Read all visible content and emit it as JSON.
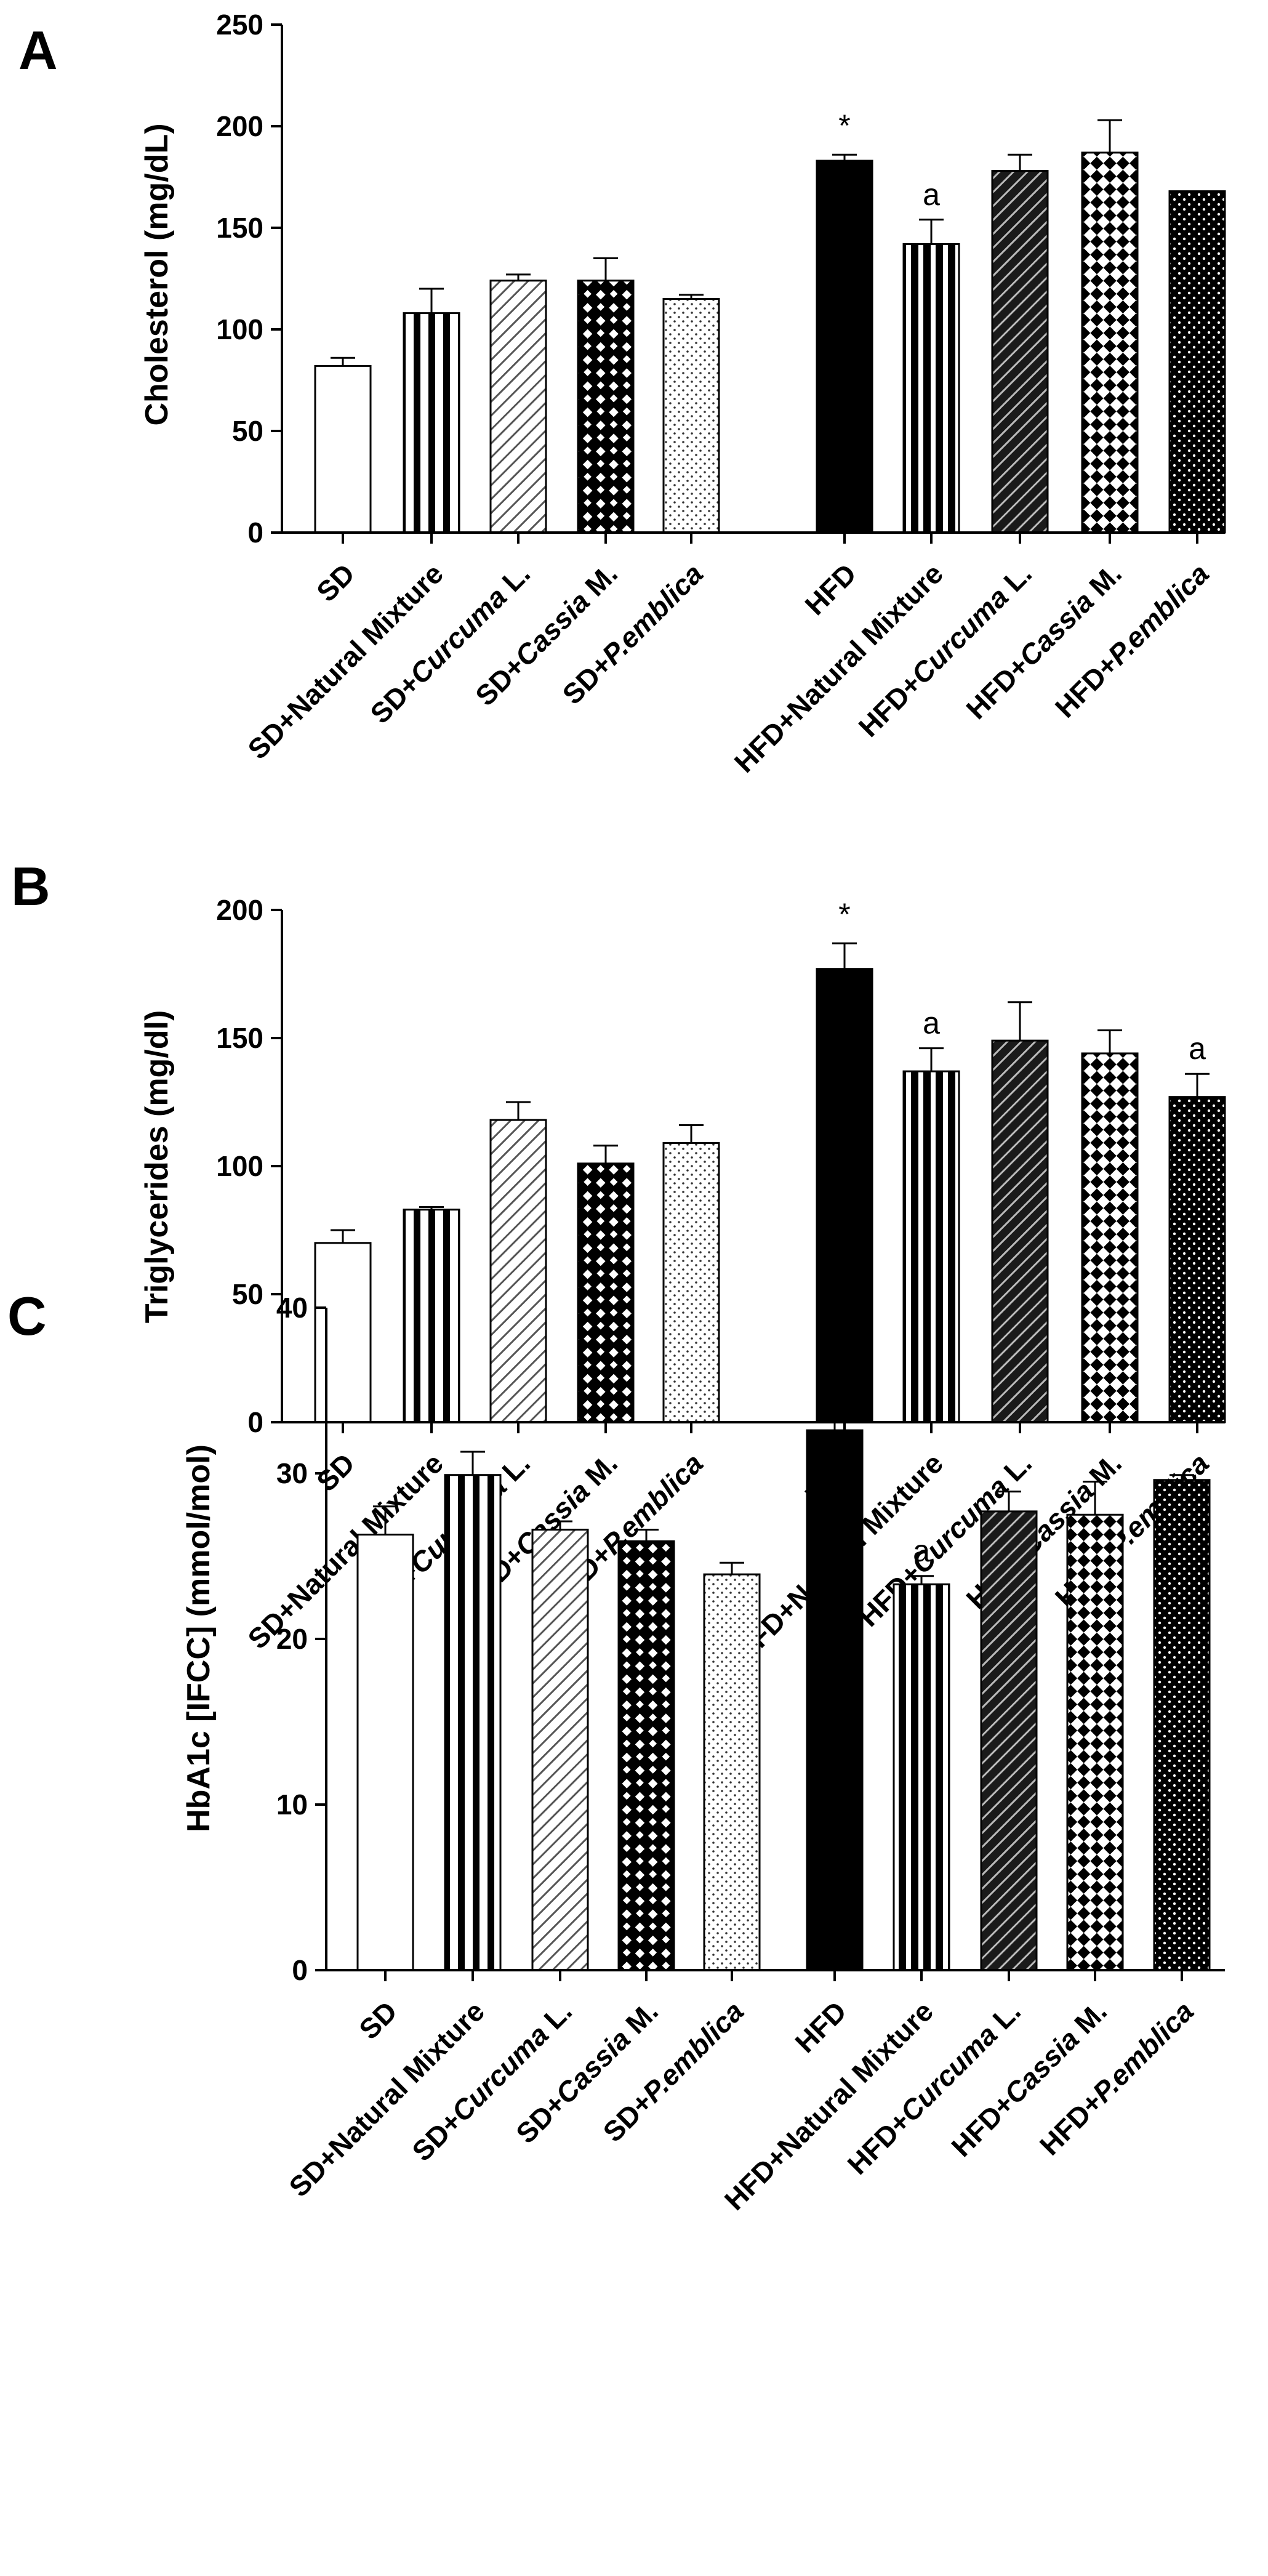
{
  "figure": {
    "colors": {
      "axis": "#000000",
      "background": "#ffffff"
    }
  },
  "chart_data": [
    {
      "type": "bar",
      "panel_label": "A",
      "ylabel": "Cholesterol (mg/dL)",
      "ylim": [
        0,
        250
      ],
      "yticks": [
        0,
        50,
        100,
        150,
        200,
        250
      ],
      "categories": [
        {
          "prefix": "SD",
          "italic": "",
          "suffix": ""
        },
        {
          "prefix": "SD+Natural Mixture",
          "italic": "",
          "suffix": ""
        },
        {
          "prefix": "SD+",
          "italic": "Curcuma",
          "suffix": " L."
        },
        {
          "prefix": "SD+",
          "italic": "Cassia",
          "suffix": " M."
        },
        {
          "prefix": "SD+",
          "italic": "P.emblica",
          "suffix": ""
        },
        {
          "prefix": "HFD",
          "italic": "",
          "suffix": ""
        },
        {
          "prefix": "HFD+Natural Mixture",
          "italic": "",
          "suffix": ""
        },
        {
          "prefix": "HFD+",
          "italic": "Curcuma",
          "suffix": " L."
        },
        {
          "prefix": "HFD+",
          "italic": "Cassia",
          "suffix": " M."
        },
        {
          "prefix": "HFD+",
          "italic": "P.emblica",
          "suffix": ""
        }
      ],
      "values": [
        82,
        108,
        124,
        124,
        115,
        183,
        142,
        178,
        187,
        168
      ],
      "errors": [
        4,
        12,
        3,
        11,
        2,
        3,
        12,
        8,
        16,
        0
      ],
      "patterns": [
        "white",
        "vstripes",
        "hatch-light",
        "checker-black",
        "dots-light",
        "black",
        "vstripes-dense",
        "hatch-dark",
        "checker-white",
        "dots-dark"
      ],
      "annotations": [
        "",
        "",
        "",
        "",
        "",
        "*",
        "a",
        "",
        "",
        ""
      ]
    },
    {
      "type": "bar",
      "panel_label": "B",
      "ylabel": "Triglycerides (mg/dl)",
      "ylim": [
        0,
        200
      ],
      "yticks": [
        0,
        50,
        100,
        150,
        200
      ],
      "categories": [
        {
          "prefix": "SD",
          "italic": "",
          "suffix": ""
        },
        {
          "prefix": "SD+Natural Mixture",
          "italic": "",
          "suffix": ""
        },
        {
          "prefix": "SD+",
          "italic": "Curcuma",
          "suffix": " L."
        },
        {
          "prefix": "SD+",
          "italic": "Cassia",
          "suffix": " M."
        },
        {
          "prefix": "SD+",
          "italic": "P.emblica",
          "suffix": ""
        },
        {
          "prefix": "HFD",
          "italic": "",
          "suffix": ""
        },
        {
          "prefix": "HFD+Natural Mixture",
          "italic": "",
          "suffix": ""
        },
        {
          "prefix": "HFD+",
          "italic": "Curcuma",
          "suffix": " L."
        },
        {
          "prefix": "HFD+",
          "italic": "Cassia",
          "suffix": " M."
        },
        {
          "prefix": "HFD+",
          "italic": "P.emblica",
          "suffix": ""
        }
      ],
      "values": [
        70,
        83,
        118,
        101,
        109,
        177,
        137,
        149,
        144,
        127
      ],
      "errors": [
        5,
        1,
        7,
        7,
        7,
        10,
        9,
        15,
        9,
        9
      ],
      "patterns": [
        "white",
        "vstripes",
        "hatch-light",
        "checker-black",
        "dots-light",
        "black",
        "vstripes-dense",
        "hatch-dark",
        "checker-white",
        "dots-dark"
      ],
      "annotations": [
        "",
        "",
        "",
        "",
        "",
        "*",
        "a",
        "",
        "",
        "a"
      ]
    },
    {
      "type": "bar",
      "panel_label": "C",
      "ylabel": "HbA1c [IFCC] (mmol/mol)",
      "ylim": [
        0,
        40
      ],
      "yticks": [
        0,
        10,
        20,
        30,
        40
      ],
      "categories": [
        {
          "prefix": "SD",
          "italic": "",
          "suffix": ""
        },
        {
          "prefix": "SD+Natural Mixture",
          "italic": "",
          "suffix": ""
        },
        {
          "prefix": "SD+",
          "italic": "Curcuma",
          "suffix": " L."
        },
        {
          "prefix": "SD+",
          "italic": "Cassia",
          "suffix": " M."
        },
        {
          "prefix": "SD+",
          "italic": "P.emblica",
          "suffix": ""
        },
        {
          "prefix": "HFD",
          "italic": "",
          "suffix": ""
        },
        {
          "prefix": "HFD+Natural Mixture",
          "italic": "",
          "suffix": ""
        },
        {
          "prefix": "HFD+",
          "italic": "Curcuma",
          "suffix": " L."
        },
        {
          "prefix": "HFD+",
          "italic": "Cassia",
          "suffix": " M."
        },
        {
          "prefix": "HFD+",
          "italic": "P.emblica",
          "suffix": ""
        }
      ],
      "values": [
        26.3,
        29.9,
        26.6,
        25.9,
        23.9,
        32.6,
        23.3,
        27.7,
        27.5,
        29.6
      ],
      "errors": [
        1.7,
        1.4,
        0.5,
        0.7,
        0.7,
        0.9,
        0.5,
        1.2,
        2.0,
        0.3
      ],
      "patterns": [
        "white",
        "vstripes",
        "hatch-light",
        "checker-black",
        "dots-light",
        "black",
        "vstripes-dense",
        "hatch-dark",
        "checker-white",
        "dots-dark"
      ],
      "annotations": [
        "",
        "",
        "",
        "",
        "",
        "*",
        "a",
        "",
        "",
        ""
      ]
    }
  ]
}
